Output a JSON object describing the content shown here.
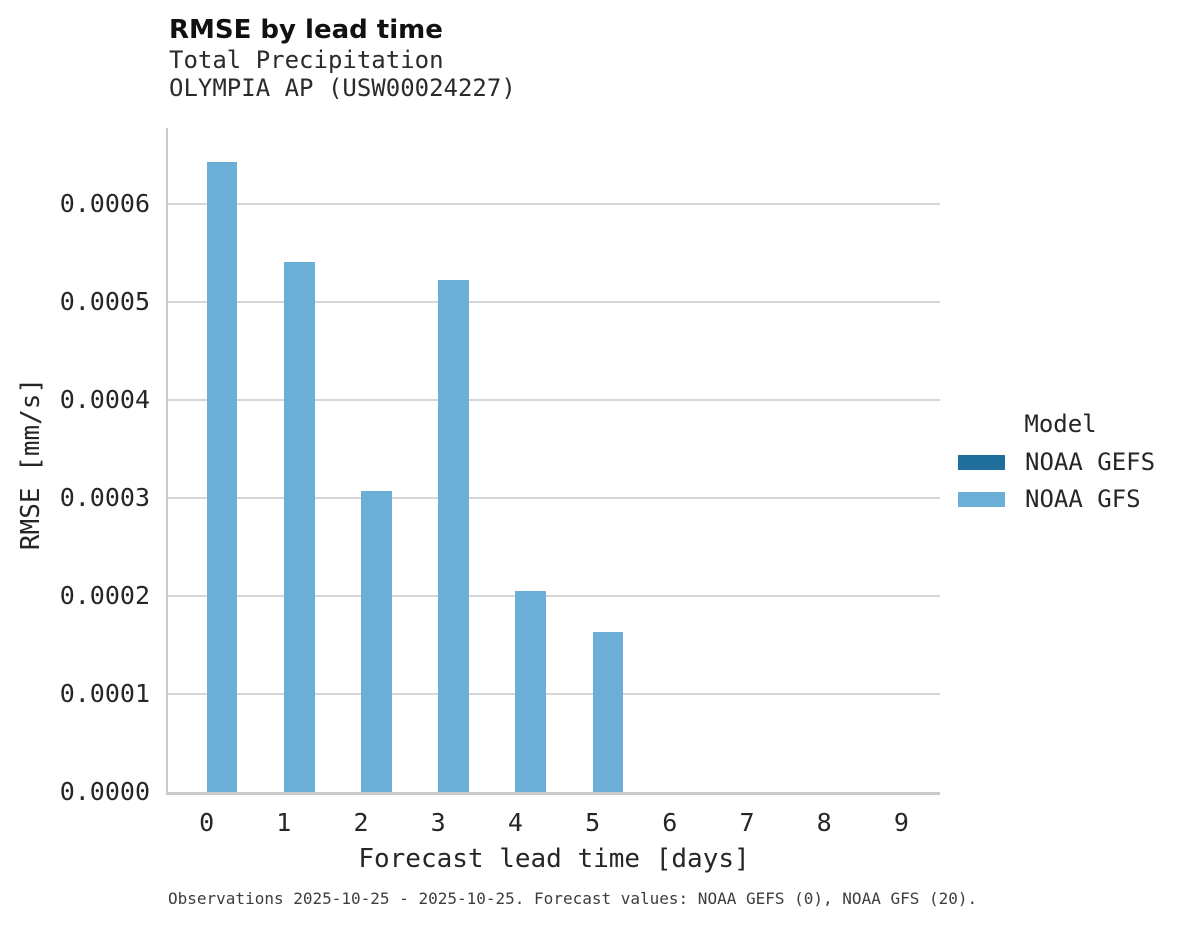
{
  "chart_data": {
    "type": "bar",
    "title": "RMSE by lead time",
    "subtitle": [
      "Total Precipitation",
      "OLYMPIA AP (USW00024227)"
    ],
    "xlabel": "Forecast lead time [days]",
    "ylabel": "RMSE [mm/s]",
    "categories": [
      "0",
      "1",
      "2",
      "3",
      "4",
      "5",
      "6",
      "7",
      "8",
      "9"
    ],
    "series": [
      {
        "name": "NOAA GEFS",
        "color": "#1f6e9c",
        "values": [
          null,
          null,
          null,
          null,
          null,
          null,
          null,
          null,
          null,
          null
        ]
      },
      {
        "name": "NOAA GFS",
        "color": "#6baed6",
        "values": [
          0.000642,
          0.00054,
          0.000307,
          0.000522,
          0.000205,
          0.000163,
          null,
          null,
          null,
          null
        ]
      }
    ],
    "ylim": [
      0,
      0.000677
    ],
    "yticks": [
      0,
      0.0001,
      0.0002,
      0.0003,
      0.0004,
      0.0005,
      0.0006
    ],
    "ytick_labels": [
      "0.0000",
      "0.0001",
      "0.0002",
      "0.0003",
      "0.0004",
      "0.0005",
      "0.0006"
    ],
    "grid": true,
    "legend": {
      "title": "Model",
      "position": "right"
    }
  },
  "footer": {
    "note": "Observations 2025-10-25 - 2025-10-25. Forecast values: NOAA GEFS (0), NOAA GFS (20)."
  },
  "colors": {
    "grid": "#d6d6d6",
    "spine": "#c9c9c9",
    "text": "#262626"
  }
}
